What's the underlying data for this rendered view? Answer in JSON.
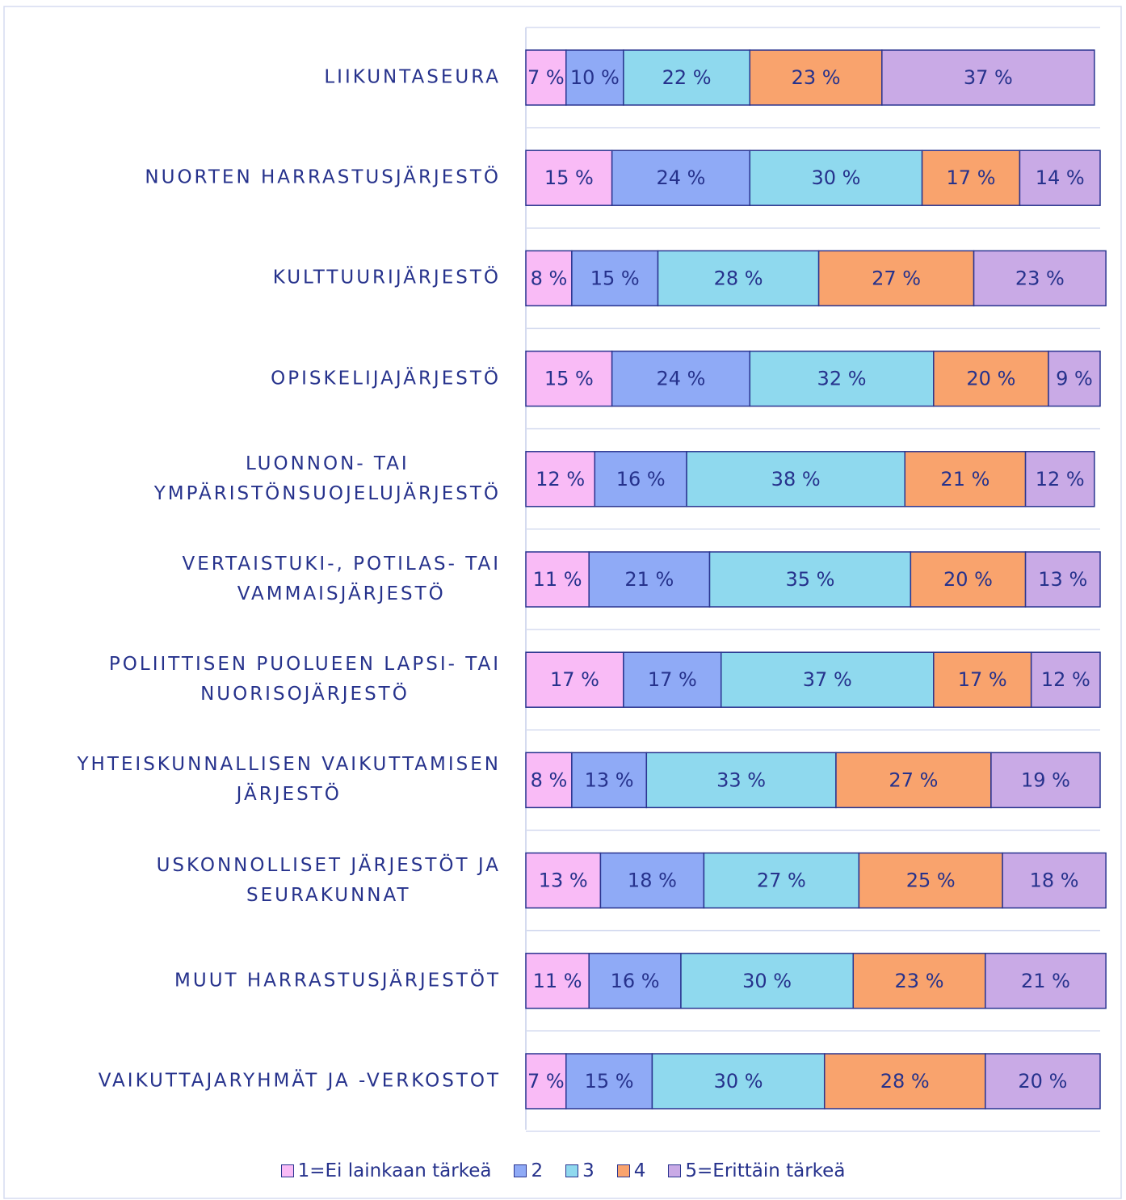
{
  "chart_data": {
    "type": "bar",
    "orientation": "horizontal",
    "stacked": true,
    "categories": [
      "LIIKUNTASEURA",
      "NUORTEN HARRASTUSJÄRJESTÖ",
      "KULTTUURIJÄRJESTÖ",
      "OPISKELIJAJÄRJESTÖ",
      "LUONNON- TAI\nYMPÄRISTÖNSUOJELUJÄRJESTÖ",
      "VERTAISTUKI-, POTILAS- TAI\nVAMMAISJÄRJESTÖ",
      "POLIITTISEN PUOLUEEN LAPSI- TAI\nNUORISOJÄRJESTÖ",
      "YHTEISKUNNALLISEN VAIKUTTAMISEN\nJÄRJESTÖ",
      "USKONNOLLISET JÄRJESTÖT JA\nSEURAKUNNAT",
      "MUUT HARRASTUSJÄRJESTÖT",
      "VAIKUTTAJARYHMÄT JA -VERKOSTOT"
    ],
    "xlim": [
      0,
      100
    ],
    "series": [
      {
        "name": "1=Ei lainkaan tärkeä",
        "color": "#f9bbf6",
        "values": [
          7,
          15,
          8,
          15,
          12,
          11,
          17,
          8,
          13,
          11,
          7
        ],
        "value_labels": [
          "7 %",
          "15 %",
          "8 %",
          "15 %",
          "12 %",
          "11 %",
          "17 %",
          "8 %",
          "13 %",
          "11 %",
          "7 %"
        ]
      },
      {
        "name": "2",
        "color": "#8faaf6",
        "values": [
          10,
          24,
          15,
          24,
          16,
          21,
          17,
          13,
          18,
          16,
          15
        ],
        "value_labels": [
          "10 %",
          "24 %",
          "15 %",
          "24 %",
          "16 %",
          "21 %",
          "17 %",
          "13 %",
          "18 %",
          "16 %",
          "15 %"
        ]
      },
      {
        "name": "3",
        "color": "#8fd9ee",
        "values": [
          22,
          30,
          28,
          32,
          38,
          35,
          37,
          33,
          27,
          30,
          30
        ],
        "value_labels": [
          "22 %",
          "30 %",
          "28 %",
          "32 %",
          "38 %",
          "35 %",
          "37 %",
          "33 %",
          "27 %",
          "30 %",
          "30 %"
        ]
      },
      {
        "name": "4",
        "color": "#f9a36d",
        "values": [
          23,
          17,
          27,
          20,
          21,
          20,
          17,
          27,
          25,
          23,
          28
        ],
        "value_labels": [
          "23 %",
          "17 %",
          "27 %",
          "20 %",
          "21 %",
          "20 %",
          "17 %",
          "27 %",
          "25 %",
          "23 %",
          "28 %"
        ]
      },
      {
        "name": "5=Erittäin tärkeä",
        "color": "#c9aae6",
        "values": [
          37,
          14,
          23,
          9,
          12,
          13,
          12,
          19,
          18,
          21,
          20
        ],
        "value_labels": [
          "37 %",
          "14 %",
          "23 %",
          "9 %",
          "12 %",
          "13 %",
          "12 %",
          "19 %",
          "18 %",
          "21 %",
          "20 %"
        ]
      }
    ],
    "legend": "bottom"
  }
}
